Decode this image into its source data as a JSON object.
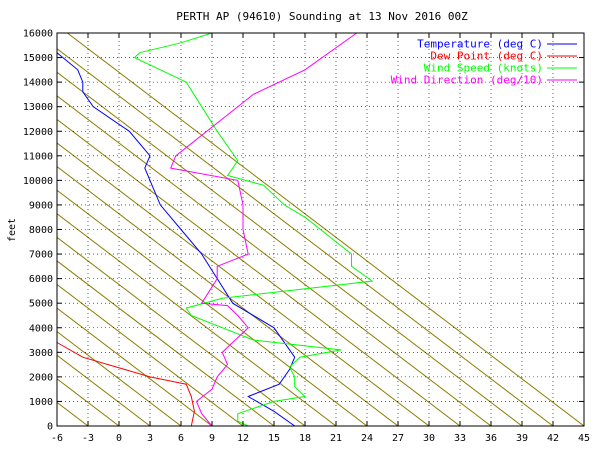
{
  "chart_data": {
    "type": "line",
    "title": "PERTH AP (94610) Sounding at 13 Nov 2016 00Z",
    "ylabel": "feet",
    "xlabel": "",
    "xlim": [
      -6,
      45
    ],
    "ylim": [
      0,
      16000
    ],
    "x_ticks": [
      "-6",
      "-3",
      "0",
      "3",
      "6",
      "9",
      "12",
      "15",
      "18",
      "21",
      "24",
      "27",
      "30",
      "33",
      "36",
      "39",
      "42",
      "45"
    ],
    "y_ticks": [
      "0",
      "1000",
      "2000",
      "3000",
      "4000",
      "5000",
      "6000",
      "7000",
      "8000",
      "9000",
      "10000",
      "11000",
      "12000",
      "13000",
      "14000",
      "15000",
      "16000"
    ],
    "grid": true,
    "legend_position": "top-right",
    "isotherm_color": "#8b7d00",
    "series": [
      {
        "name": "Temperature (deg C)",
        "color": "#0000ff",
        "points": [
          [
            17,
            0
          ],
          [
            15,
            600
          ],
          [
            12.5,
            1200
          ],
          [
            15.5,
            1700
          ],
          [
            16.5,
            2300
          ],
          [
            17,
            2800
          ],
          [
            15,
            4000
          ],
          [
            11,
            5000
          ],
          [
            9.5,
            6000
          ],
          [
            8,
            7000
          ],
          [
            6,
            8000
          ],
          [
            4,
            9000
          ],
          [
            3,
            10000
          ],
          [
            2.5,
            10500
          ],
          [
            3,
            11000
          ],
          [
            1,
            12000
          ],
          [
            -2.5,
            13000
          ],
          [
            -3.5,
            13600
          ],
          [
            -3.5,
            14000
          ],
          [
            -4,
            14500
          ],
          [
            -6,
            15200
          ]
        ]
      },
      {
        "name": "Dew Point (deg C)",
        "color": "#ff0000",
        "points": [
          [
            7,
            0
          ],
          [
            7.3,
            600
          ],
          [
            7,
            1200
          ],
          [
            6.5,
            1700
          ],
          [
            3,
            2000
          ],
          [
            -3.5,
            2800
          ],
          [
            -6,
            3400
          ]
        ]
      },
      {
        "name": "Wind Speed (knots)",
        "color": "#00ff00",
        "points": [
          [
            12.5,
            0
          ],
          [
            11.5,
            200
          ],
          [
            11.5,
            500
          ],
          [
            15,
            1000
          ],
          [
            18,
            1200
          ],
          [
            17,
            1600
          ],
          [
            17,
            2000
          ],
          [
            16.5,
            2400
          ],
          [
            17.5,
            2800
          ],
          [
            21.5,
            3100
          ],
          [
            13,
            3500
          ],
          [
            7,
            4500
          ],
          [
            6.5,
            4800
          ],
          [
            10,
            5200
          ],
          [
            24.5,
            5900
          ],
          [
            22.5,
            6500
          ],
          [
            22.5,
            7000
          ],
          [
            19.5,
            8000
          ],
          [
            18,
            8500
          ],
          [
            16,
            9000
          ],
          [
            14,
            9800
          ],
          [
            10.5,
            10200
          ],
          [
            11,
            10500
          ],
          [
            11.5,
            10800
          ],
          [
            11,
            11100
          ],
          [
            9.5,
            12000
          ],
          [
            8,
            13000
          ],
          [
            6.5,
            14000
          ],
          [
            1.5,
            15000
          ],
          [
            2,
            15200
          ],
          [
            6,
            15600
          ],
          [
            9,
            16000
          ]
        ]
      },
      {
        "name": "Wind Direction (deg/10)",
        "color": "#ff00ff",
        "points": [
          [
            9,
            0
          ],
          [
            8,
            500
          ],
          [
            7.5,
            1000
          ],
          [
            9,
            1500
          ],
          [
            9.5,
            2000
          ],
          [
            10.5,
            2500
          ],
          [
            10,
            3000
          ],
          [
            12.5,
            4000
          ],
          [
            11.5,
            4500
          ],
          [
            10.5,
            4900
          ],
          [
            8,
            5000
          ],
          [
            9.5,
            6000
          ],
          [
            9.5,
            6500
          ],
          [
            12.5,
            7000
          ],
          [
            12,
            8000
          ],
          [
            12,
            9000
          ],
          [
            11.5,
            10000
          ],
          [
            5,
            10500
          ],
          [
            5.5,
            11000
          ],
          [
            10,
            12500
          ],
          [
            13,
            13500
          ],
          [
            18,
            14500
          ],
          [
            23,
            16000
          ]
        ]
      }
    ]
  }
}
